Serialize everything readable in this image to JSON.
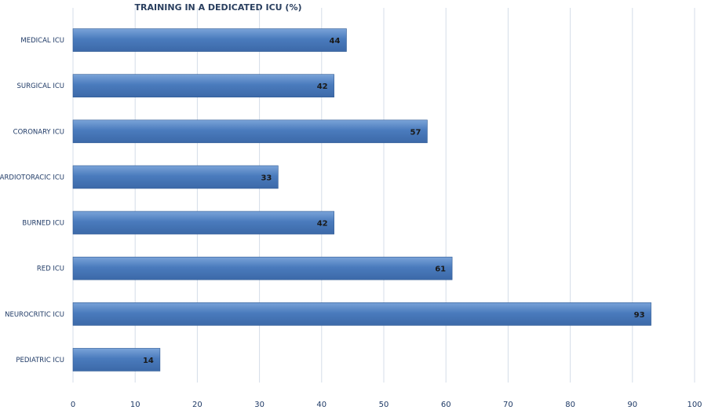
{
  "chart_data": {
    "type": "bar",
    "orientation": "horizontal",
    "title": "TRAINING IN A DEDICATED ICU (%)",
    "categories": [
      "MEDICAL ICU",
      "SURGICAL ICU",
      "CORONARY ICU",
      "CARDIOTORACIC ICU",
      "BURNED ICU",
      "RED ICU",
      "NEUROCRITIC ICU",
      "PEDIATRIC ICU"
    ],
    "values": [
      44,
      42,
      57,
      33,
      42,
      61,
      93,
      14
    ],
    "xlim": [
      0,
      100
    ],
    "xticks": [
      0,
      10,
      20,
      30,
      40,
      50,
      60,
      70,
      80,
      90,
      100
    ],
    "grid": "vertical",
    "legend": "none",
    "colors": {
      "bar_fill": "#4a7bbd",
      "bar_top": "#6f9ad3",
      "bar_edge": "#2f5a94",
      "grid": "#d4dde8"
    }
  }
}
